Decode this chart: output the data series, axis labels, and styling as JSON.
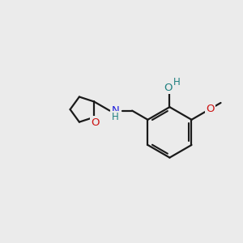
{
  "background_color": "#ebebeb",
  "line_color": "#1a1a1a",
  "N_color": "#2020dd",
  "O_color": "#cc1010",
  "OH_color": "#208080",
  "bond_width": 1.6,
  "figsize": [
    3.0,
    3.0
  ],
  "dpi": 100,
  "xlim": [
    0,
    10
  ],
  "ylim": [
    0,
    10
  ]
}
